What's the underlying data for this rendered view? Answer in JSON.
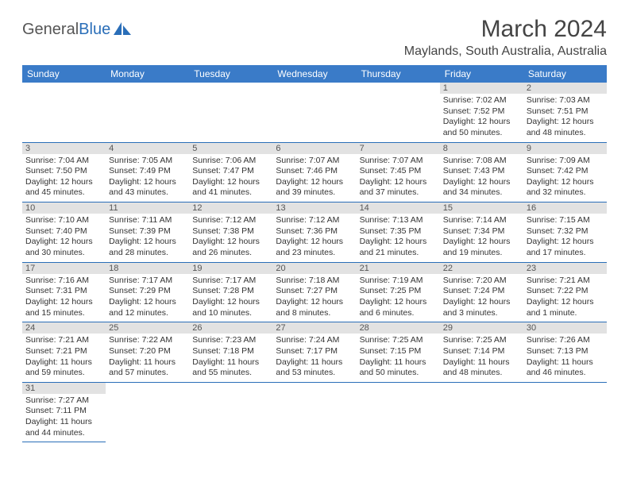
{
  "logo": {
    "text1": "General",
    "text2": "Blue",
    "icon_color": "#2a6eb8"
  },
  "title": "March 2024",
  "location": "Maylands, South Australia, Australia",
  "colors": {
    "header_bg": "#3a7bc8",
    "divider": "#2a6eb8",
    "daynum_bg": "#e2e2e2"
  },
  "weekdays": [
    "Sunday",
    "Monday",
    "Tuesday",
    "Wednesday",
    "Thursday",
    "Friday",
    "Saturday"
  ],
  "weeks": [
    [
      null,
      null,
      null,
      null,
      null,
      {
        "n": "1",
        "sr": "7:02 AM",
        "ss": "7:52 PM",
        "dh": "12",
        "dm": "50"
      },
      {
        "n": "2",
        "sr": "7:03 AM",
        "ss": "7:51 PM",
        "dh": "12",
        "dm": "48"
      }
    ],
    [
      {
        "n": "3",
        "sr": "7:04 AM",
        "ss": "7:50 PM",
        "dh": "12",
        "dm": "45"
      },
      {
        "n": "4",
        "sr": "7:05 AM",
        "ss": "7:49 PM",
        "dh": "12",
        "dm": "43"
      },
      {
        "n": "5",
        "sr": "7:06 AM",
        "ss": "7:47 PM",
        "dh": "12",
        "dm": "41"
      },
      {
        "n": "6",
        "sr": "7:07 AM",
        "ss": "7:46 PM",
        "dh": "12",
        "dm": "39"
      },
      {
        "n": "7",
        "sr": "7:07 AM",
        "ss": "7:45 PM",
        "dh": "12",
        "dm": "37"
      },
      {
        "n": "8",
        "sr": "7:08 AM",
        "ss": "7:43 PM",
        "dh": "12",
        "dm": "34"
      },
      {
        "n": "9",
        "sr": "7:09 AM",
        "ss": "7:42 PM",
        "dh": "12",
        "dm": "32"
      }
    ],
    [
      {
        "n": "10",
        "sr": "7:10 AM",
        "ss": "7:40 PM",
        "dh": "12",
        "dm": "30"
      },
      {
        "n": "11",
        "sr": "7:11 AM",
        "ss": "7:39 PM",
        "dh": "12",
        "dm": "28"
      },
      {
        "n": "12",
        "sr": "7:12 AM",
        "ss": "7:38 PM",
        "dh": "12",
        "dm": "26"
      },
      {
        "n": "13",
        "sr": "7:12 AM",
        "ss": "7:36 PM",
        "dh": "12",
        "dm": "23"
      },
      {
        "n": "14",
        "sr": "7:13 AM",
        "ss": "7:35 PM",
        "dh": "12",
        "dm": "21"
      },
      {
        "n": "15",
        "sr": "7:14 AM",
        "ss": "7:34 PM",
        "dh": "12",
        "dm": "19"
      },
      {
        "n": "16",
        "sr": "7:15 AM",
        "ss": "7:32 PM",
        "dh": "12",
        "dm": "17"
      }
    ],
    [
      {
        "n": "17",
        "sr": "7:16 AM",
        "ss": "7:31 PM",
        "dh": "12",
        "dm": "15"
      },
      {
        "n": "18",
        "sr": "7:17 AM",
        "ss": "7:29 PM",
        "dh": "12",
        "dm": "12"
      },
      {
        "n": "19",
        "sr": "7:17 AM",
        "ss": "7:28 PM",
        "dh": "12",
        "dm": "10"
      },
      {
        "n": "20",
        "sr": "7:18 AM",
        "ss": "7:27 PM",
        "dh": "12",
        "dm": "8"
      },
      {
        "n": "21",
        "sr": "7:19 AM",
        "ss": "7:25 PM",
        "dh": "12",
        "dm": "6"
      },
      {
        "n": "22",
        "sr": "7:20 AM",
        "ss": "7:24 PM",
        "dh": "12",
        "dm": "3"
      },
      {
        "n": "23",
        "sr": "7:21 AM",
        "ss": "7:22 PM",
        "dh": "12",
        "dm": "1"
      }
    ],
    [
      {
        "n": "24",
        "sr": "7:21 AM",
        "ss": "7:21 PM",
        "dh": "11",
        "dm": "59"
      },
      {
        "n": "25",
        "sr": "7:22 AM",
        "ss": "7:20 PM",
        "dh": "11",
        "dm": "57"
      },
      {
        "n": "26",
        "sr": "7:23 AM",
        "ss": "7:18 PM",
        "dh": "11",
        "dm": "55"
      },
      {
        "n": "27",
        "sr": "7:24 AM",
        "ss": "7:17 PM",
        "dh": "11",
        "dm": "53"
      },
      {
        "n": "28",
        "sr": "7:25 AM",
        "ss": "7:15 PM",
        "dh": "11",
        "dm": "50"
      },
      {
        "n": "29",
        "sr": "7:25 AM",
        "ss": "7:14 PM",
        "dh": "11",
        "dm": "48"
      },
      {
        "n": "30",
        "sr": "7:26 AM",
        "ss": "7:13 PM",
        "dh": "11",
        "dm": "46"
      }
    ],
    [
      {
        "n": "31",
        "sr": "7:27 AM",
        "ss": "7:11 PM",
        "dh": "11",
        "dm": "44"
      },
      null,
      null,
      null,
      null,
      null,
      null
    ]
  ],
  "labels": {
    "sunrise": "Sunrise: ",
    "sunset": "Sunset: ",
    "daylight1": "Daylight: ",
    "hours": " hours",
    "and": "and ",
    "minutes": " minutes.",
    "minute": " minute."
  }
}
